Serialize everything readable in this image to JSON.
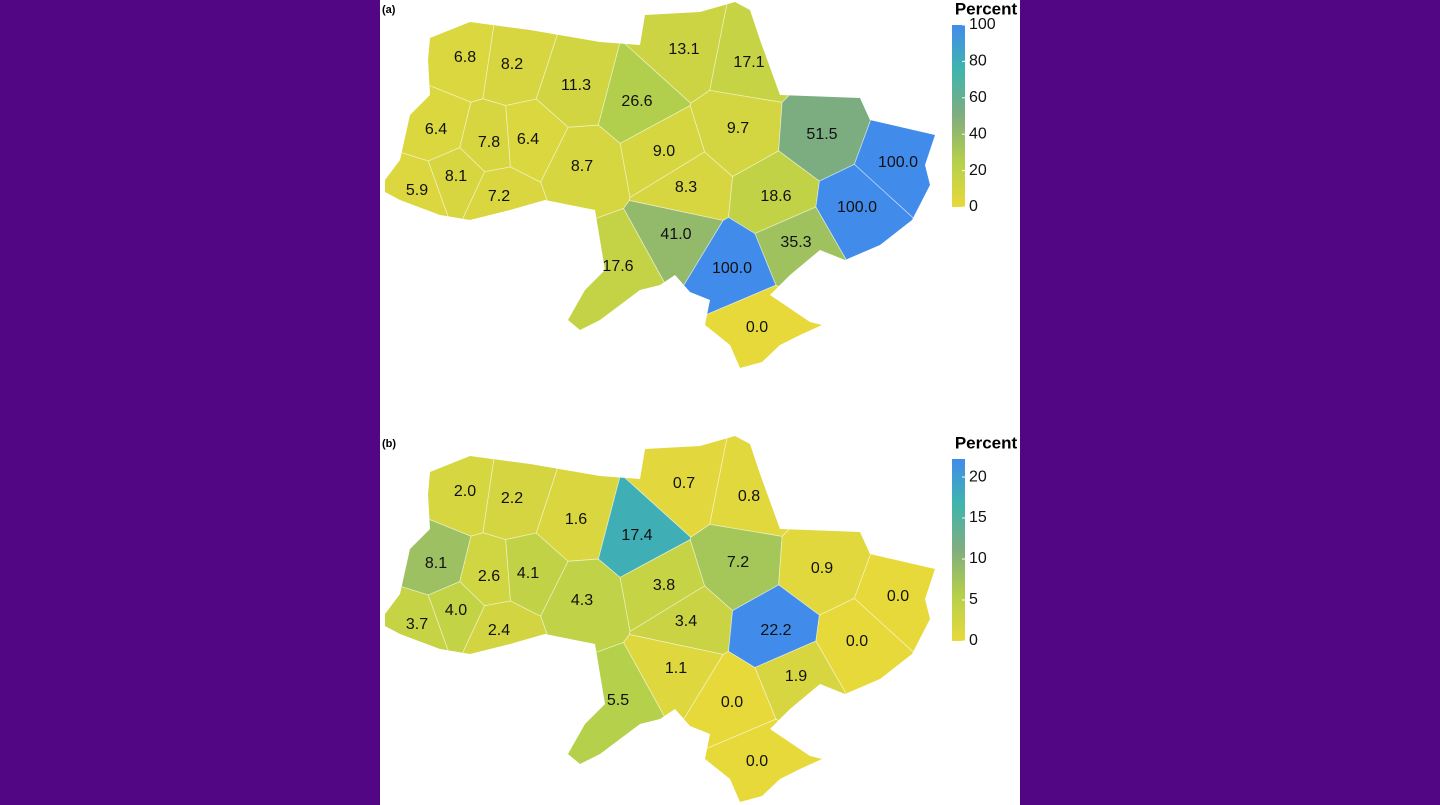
{
  "colorscale": [
    "#e8d93b",
    "#b5d04a",
    "#80ad7e",
    "#40b5ac",
    "#418ceb"
  ],
  "panels": [
    {
      "label": "(a)",
      "legend_title": "Percent",
      "clim": [
        0,
        100
      ],
      "ticks": [
        0,
        20,
        40,
        60,
        80,
        100
      ],
      "values": [
        6.8,
        8.2,
        11.3,
        13.1,
        17.1,
        26.6,
        6.4,
        7.8,
        6.4,
        9.7,
        51.5,
        100,
        9.0,
        8.7,
        5.9,
        8.1,
        7.2,
        8.3,
        18.6,
        100,
        41.0,
        35.3,
        17.6,
        100,
        0
      ],
      "value_labels": [
        "6.8",
        "8.2",
        "11.3",
        "13.1",
        "17.1",
        "26.6",
        "6.4",
        "7.8",
        "6.4",
        "9.7",
        "51.5",
        "100.0",
        "9.0",
        "8.7",
        "5.9",
        "8.1",
        "7.2",
        "8.3",
        "18.6",
        "100.0",
        "41.0",
        "35.3",
        "17.6",
        "100.0",
        "0.0"
      ]
    },
    {
      "label": "(b)",
      "legend_title": "Percent",
      "clim": [
        0,
        22.2
      ],
      "ticks": [
        0,
        5,
        10,
        15,
        20
      ],
      "values": [
        2.0,
        2.2,
        1.6,
        0.7,
        0.8,
        17.4,
        8.1,
        2.6,
        4.1,
        7.2,
        0.9,
        0,
        3.8,
        4.3,
        3.7,
        4.0,
        2.4,
        3.4,
        22.2,
        0,
        1.1,
        1.9,
        5.5,
        0,
        0
      ],
      "value_labels": [
        "2.0",
        "2.2",
        "1.6",
        "0.7",
        "0.8",
        "17.4",
        "8.1",
        "2.6",
        "4.1",
        "7.2",
        "0.9",
        "0.0",
        "3.8",
        "4.3",
        "3.7",
        "4.0",
        "2.4",
        "3.4",
        "22.2",
        "0.0",
        "1.1",
        "1.9",
        "5.5",
        "0.0",
        "0.0"
      ]
    }
  ]
}
